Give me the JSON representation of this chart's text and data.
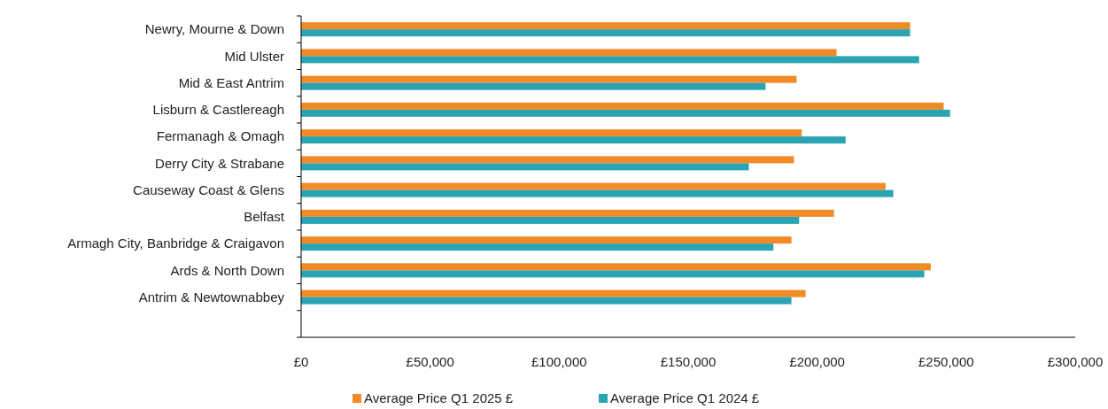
{
  "chart_data": {
    "type": "bar",
    "orientation": "horizontal",
    "categories": [
      "Newry, Mourne & Down",
      "Mid Ulster",
      "Mid & East Antrim",
      "Lisburn & Castlereagh",
      "Fermanagh & Omagh",
      "Derry City & Strabane",
      "Causeway Coast & Glens",
      "Belfast",
      "Armagh City, Banbridge & Craigavon",
      "Ards & North Down",
      "Antrim & Newtownabbey",
      null
    ],
    "series": [
      {
        "name": "Average Price Q1 2025 £",
        "color": "#f28a26",
        "values": [
          236000,
          207500,
          192000,
          249000,
          194000,
          191000,
          226500,
          206500,
          190000,
          244000,
          195500,
          null
        ]
      },
      {
        "name": "Average Price Q1 2024 £",
        "color": "#2aa3b2",
        "values": [
          236000,
          239500,
          180000,
          251500,
          211000,
          173500,
          229500,
          193000,
          183000,
          241500,
          190000,
          null
        ]
      }
    ],
    "xlim": [
      0,
      300000
    ],
    "xticks": [
      {
        "value": 0,
        "label": "£0"
      },
      {
        "value": 50000,
        "label": "£50,000"
      },
      {
        "value": 100000,
        "label": "£100,000"
      },
      {
        "value": 150000,
        "label": "£150,000"
      },
      {
        "value": 200000,
        "label": "£200,000"
      },
      {
        "value": 250000,
        "label": "£250,000"
      },
      {
        "value": 300000,
        "label": "£300,000"
      }
    ],
    "grid": false,
    "legend": "bottom"
  }
}
